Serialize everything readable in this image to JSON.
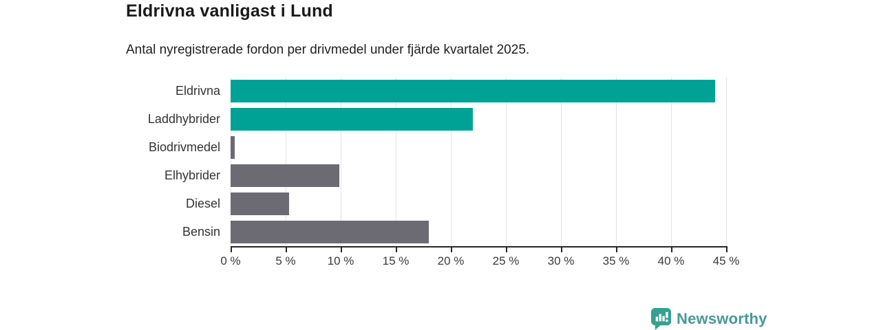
{
  "chart_data": {
    "type": "bar",
    "orientation": "horizontal",
    "title": "Eldrivna vanligast i Lund",
    "subtitle": "Antal nyregistrerade fordon per drivmedel under fjärde kvartalet 2025.",
    "categories": [
      "Eldrivna",
      "Laddhybrider",
      "Biodrivmedel",
      "Elhybrider",
      "Diesel",
      "Bensin"
    ],
    "values": [
      44,
      22,
      0.4,
      9.9,
      5.3,
      18
    ],
    "bar_colors": [
      "#00a296",
      "#00a296",
      "#6c6b73",
      "#6c6b73",
      "#6c6b73",
      "#6c6b73"
    ],
    "xlim": [
      0,
      45
    ],
    "x_ticks": [
      0,
      5,
      10,
      15,
      20,
      25,
      30,
      35,
      40,
      45
    ],
    "x_tick_labels": [
      "0 %",
      "5 %",
      "10 %",
      "15 %",
      "20 %",
      "25 %",
      "30 %",
      "35 %",
      "40 %",
      "45 %"
    ],
    "xlabel": "",
    "ylabel": "",
    "grid": true,
    "legend": false
  },
  "colors": {
    "bar_highlight": "#00a296",
    "bar_default": "#6c6b73",
    "gridline": "#e3e3e3",
    "axis": "#262626",
    "logo_icon": "#35a192",
    "logo_text": "#479a94"
  },
  "footer": {
    "brand": "Newsworthy"
  }
}
